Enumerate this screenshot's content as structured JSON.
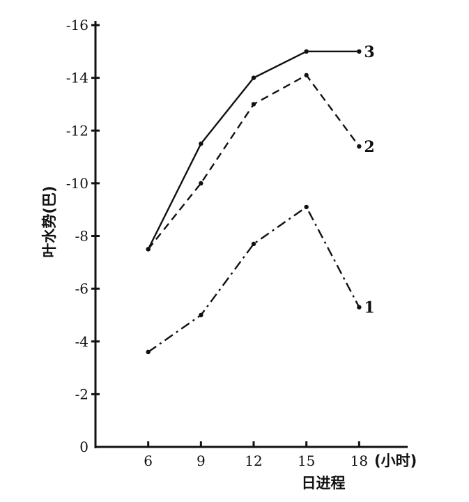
{
  "chart_data": {
    "type": "line",
    "title": "",
    "xlabel": "日进程",
    "xunit": "(小时)",
    "ylabel": "叶水势(巴)",
    "x": [
      6,
      9,
      12,
      15,
      18
    ],
    "x_ticks": [
      "6",
      "9",
      "12",
      "15",
      "18"
    ],
    "xlim": [
      3,
      21
    ],
    "ylim": [
      0,
      -16
    ],
    "y_ticks": [
      0,
      -2,
      -4,
      -6,
      -8,
      -10,
      -12,
      -14,
      -16
    ],
    "y_tick_labels": [
      "0",
      "-2",
      "-4",
      "-6",
      "-8",
      "-10",
      "-12",
      "-14",
      "-16"
    ],
    "grid": false,
    "legend": "none",
    "series": [
      {
        "name": "1",
        "style": "dashdot",
        "values": [
          -3.6,
          -5.0,
          -7.7,
          -9.1,
          -5.3
        ]
      },
      {
        "name": "2",
        "style": "dashed",
        "values": [
          -7.5,
          -10.0,
          -13.0,
          -14.1,
          -11.4
        ]
      },
      {
        "name": "3",
        "style": "solid",
        "values": [
          -7.5,
          -11.5,
          -14.0,
          -15.0,
          -15.0
        ]
      }
    ]
  },
  "colors": {
    "ink": "#111111",
    "background": "#ffffff"
  }
}
